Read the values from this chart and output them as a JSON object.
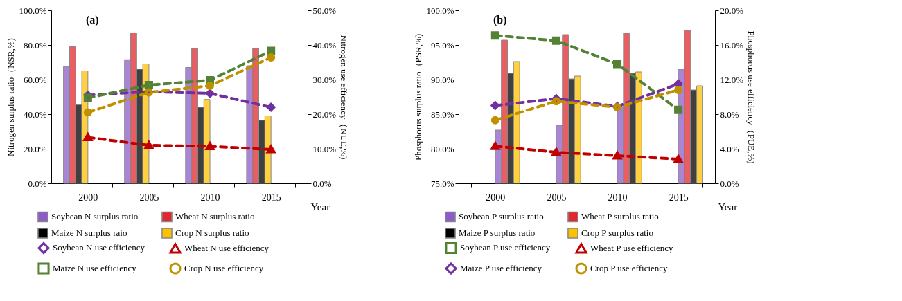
{
  "chart_data": [
    {
      "type": "bar",
      "title": "(a)",
      "xlabel": "Year",
      "ylabel": "Nitrogen surplus ratio（NSR,%)",
      "y2label": "Nitrogen use efficiency（NUE,%)",
      "categories": [
        "2000",
        "2005",
        "2010",
        "2015"
      ],
      "ylim": [
        0,
        100
      ],
      "yticks": [
        {
          "value": 0,
          "label": "0.0%"
        },
        {
          "value": 20,
          "label": "20.0%"
        },
        {
          "value": 40,
          "label": "40.0%"
        },
        {
          "value": 60,
          "label": "60.0%"
        },
        {
          "value": 80,
          "label": "80.0%"
        },
        {
          "value": 100,
          "label": "100.0%"
        }
      ],
      "y2lim": [
        0,
        50
      ],
      "y2ticks": [
        {
          "value": 0,
          "label": "0.0%"
        },
        {
          "value": 10,
          "label": "10.0%"
        },
        {
          "value": 20,
          "label": "20.0%"
        },
        {
          "value": 30,
          "label": "30.0%"
        },
        {
          "value": 40,
          "label": "40.0%"
        },
        {
          "value": 50,
          "label": "50.0%"
        }
      ],
      "legend": "bottom",
      "line_style": "dashed",
      "series": [
        {
          "name": "Soybean N surplus ratio",
          "type": "bar",
          "color": "#8e5cc8",
          "values": [
            67.5,
            71.5,
            67,
            68
          ]
        },
        {
          "name": "Wheat N surplus ratio",
          "type": "bar",
          "color": "#e0282e",
          "values": [
            79,
            87,
            78,
            78
          ]
        },
        {
          "name": "Maize N surplus raio",
          "type": "bar",
          "color": "#000000",
          "values": [
            45.5,
            66,
            44,
            36.5
          ]
        },
        {
          "name": "Crop N surplus ratio",
          "type": "bar",
          "color": "#ffc000",
          "values": [
            65,
            69,
            48.5,
            39
          ]
        },
        {
          "name": "Soybean N use efficiency",
          "type": "line",
          "axis": "y2",
          "marker": "diamond",
          "color": "#7030a0",
          "values": [
            25.5,
            26.5,
            26,
            22
          ]
        },
        {
          "name": "Wheat N use efficiency",
          "type": "line",
          "axis": "y2",
          "marker": "triangle",
          "color": "#c00000",
          "values": [
            13.3,
            11,
            10.7,
            9.8
          ]
        },
        {
          "name": "Maize N use efficiency",
          "type": "line",
          "axis": "y2",
          "marker": "square",
          "color": "#548235",
          "values": [
            24.7,
            28.4,
            29.8,
            38.3
          ]
        },
        {
          "name": "Crop N use efficiency",
          "type": "line",
          "axis": "y2",
          "marker": "circle",
          "color": "#bf9000",
          "values": [
            20.5,
            26.3,
            28.2,
            36.4
          ]
        }
      ]
    },
    {
      "type": "bar",
      "title": "(b)",
      "xlabel": "Year",
      "ylabel": "Phosphorus surplus ratio（PSR,%)",
      "y2label": "Phosphorus use efficiency（PUE,%)",
      "categories": [
        "2000",
        "2005",
        "2010",
        "2015"
      ],
      "ylim": [
        75,
        100
      ],
      "yticks": [
        {
          "value": 75,
          "label": "75.0%"
        },
        {
          "value": 80,
          "label": "80.0%"
        },
        {
          "value": 85,
          "label": "85.0%"
        },
        {
          "value": 90,
          "label": "90.0%"
        },
        {
          "value": 95,
          "label": "95.0%"
        },
        {
          "value": 100,
          "label": "100.0%"
        }
      ],
      "y2lim": [
        0,
        20
      ],
      "y2ticks": [
        {
          "value": 0,
          "label": "0.0%"
        },
        {
          "value": 4,
          "label": "4.0%"
        },
        {
          "value": 8,
          "label": "8.0%"
        },
        {
          "value": 12,
          "label": "12.0%"
        },
        {
          "value": 16,
          "label": "16.0%"
        },
        {
          "value": 20,
          "label": "20.0%"
        }
      ],
      "legend": "bottom",
      "line_style": "dashed",
      "series": [
        {
          "name": "Soybean P surplus ratio",
          "type": "bar",
          "color": "#8e5cc8",
          "values": [
            82.7,
            83.4,
            86.1,
            91.5
          ]
        },
        {
          "name": "Wheat P surplus ratio",
          "type": "bar",
          "color": "#e0282e",
          "values": [
            95.7,
            96.5,
            96.7,
            97.1
          ]
        },
        {
          "name": "Maize P surplus ratio",
          "type": "bar",
          "color": "#000000",
          "values": [
            90.9,
            90.1,
            90.9,
            88.5
          ]
        },
        {
          "name": "Crop P surplus ratio",
          "type": "bar",
          "color": "#ffc000",
          "values": [
            92.6,
            90.5,
            91.1,
            89.1
          ]
        },
        {
          "name": "Soybean P use efficiency",
          "type": "line",
          "axis": "y2",
          "marker": "square",
          "color": "#548235",
          "values": [
            17.1,
            16.5,
            13.8,
            8.5
          ]
        },
        {
          "name": "Wheat P use efficiency",
          "type": "line",
          "axis": "y2",
          "marker": "triangle",
          "color": "#c00000",
          "values": [
            4.3,
            3.6,
            3.2,
            2.8
          ]
        },
        {
          "name": "Maize P use efficiency",
          "type": "line",
          "axis": "y2",
          "marker": "diamond",
          "color": "#7030a0",
          "values": [
            9,
            9.8,
            8.9,
            11.5
          ]
        },
        {
          "name": "Crop P use efficiency",
          "type": "line",
          "axis": "y2",
          "marker": "circle",
          "color": "#bf9000",
          "values": [
            7.3,
            9.5,
            8.8,
            10.8
          ]
        }
      ]
    }
  ]
}
